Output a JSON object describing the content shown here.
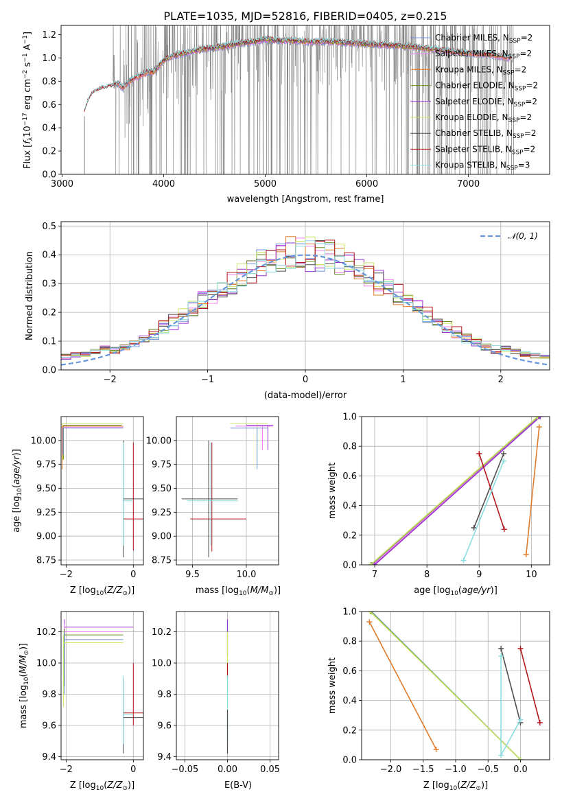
{
  "title": "PLATE=1035, MJD=52816, FIBERID=0405, z=0.215",
  "colors": {
    "chabrier_miles": "#6f8fdc",
    "salpeter_miles": "#ee82ee",
    "kroupa_miles": "#e07b2a",
    "chabrier_elodie": "#6b8e23",
    "salpeter_elodie": "#9a32cd",
    "kroupa_elodie": "#c9e66a",
    "chabrier_stelib": "#4d4d4d",
    "salpeter_stelib": "#b3161b",
    "kroupa_stelib": "#89dde0",
    "data": "#808080",
    "normal": "#6495dc",
    "grid": "#b0b0b0"
  },
  "chart_data": [
    {
      "id": "spectrum",
      "type": "line",
      "xlabel": "wavelength [Angstrom, rest frame]",
      "ylabel": "Flux [f",
      "ylabel_parts": [
        "Flux [",
        "f",
        "λ",
        "10",
        "−17",
        " erg cm",
        "−2",
        " s",
        "−1",
        " A",
        "−1",
        "]"
      ],
      "xlim": [
        2990,
        7800
      ],
      "ylim": [
        0,
        1.28
      ],
      "xticks": [
        3000,
        4000,
        5000,
        6000,
        7000
      ],
      "yticks": [
        0.0,
        0.2,
        0.4,
        0.6,
        0.8,
        1.0,
        1.2
      ],
      "grid": false,
      "legend_position": "top-right",
      "legend": [
        {
          "key": "chabrier_miles",
          "label": "Chabrier MILES, N",
          "sub": "SSP",
          "tail": "=2"
        },
        {
          "key": "salpeter_miles",
          "label": "Salpeter MILES, N",
          "sub": "SSP",
          "tail": "=2"
        },
        {
          "key": "kroupa_miles",
          "label": "Kroupa MILES, N",
          "sub": "SSP",
          "tail": "=2"
        },
        {
          "key": "chabrier_elodie",
          "label": "Chabrier ELODIE, N",
          "sub": "SSP",
          "tail": "=2"
        },
        {
          "key": "salpeter_elodie",
          "label": "Salpeter ELODIE, N",
          "sub": "SSP",
          "tail": "=2"
        },
        {
          "key": "kroupa_elodie",
          "label": "Kroupa ELODIE, N",
          "sub": "SSP",
          "tail": "=2"
        },
        {
          "key": "chabrier_stelib",
          "label": "Chabrier STELIB, N",
          "sub": "SSP",
          "tail": "=2"
        },
        {
          "key": "salpeter_stelib",
          "label": "Salpeter STELIB, N",
          "sub": "SSP",
          "tail": "=2"
        },
        {
          "key": "kroupa_stelib",
          "label": "Kroupa STELIB, N",
          "sub": "SSP",
          "tail": "=3"
        }
      ],
      "continuum": {
        "x": [
          3210,
          3250,
          3300,
          3350,
          3400,
          3450,
          3500,
          3550,
          3600,
          3650,
          3700,
          3750,
          3800,
          3850,
          3900,
          4000,
          4100,
          4200,
          4300,
          4400,
          4500,
          4600,
          4700,
          4800,
          4900,
          5000,
          5100,
          5200,
          5400,
          5600,
          5800,
          6000,
          6200,
          6400,
          6600,
          6800,
          7000,
          7200,
          7400
        ],
        "y": [
          0.5,
          0.62,
          0.7,
          0.72,
          0.74,
          0.75,
          0.76,
          0.78,
          0.74,
          0.79,
          0.82,
          0.84,
          0.86,
          0.88,
          0.88,
          0.98,
          1.02,
          1.04,
          1.06,
          1.08,
          1.09,
          1.1,
          1.12,
          1.13,
          1.14,
          1.16,
          1.15,
          1.15,
          1.14,
          1.14,
          1.13,
          1.12,
          1.11,
          1.1,
          1.08,
          1.06,
          1.04,
          1.03,
          1.0
        ]
      },
      "data_range": [
        3500,
        7450
      ]
    },
    {
      "id": "residuals",
      "type": "histogram",
      "xlabel": "(data-model)/error",
      "ylabel": "Normed distribution",
      "xlim": [
        -2.5,
        2.5
      ],
      "ylim": [
        0,
        0.515
      ],
      "xticks": [
        -2,
        -1,
        0,
        1,
        2
      ],
      "yticks": [
        0.0,
        0.1,
        0.2,
        0.3,
        0.4,
        0.5
      ],
      "grid": true,
      "legend_position": "top-right",
      "normal_label": "N(0,1)",
      "bin_width": 0.1
    },
    {
      "id": "age_vs_Z",
      "type": "errorbar",
      "xlabel": "Z [log10(Z/Z⊙)]",
      "ylabel": "age  [log10(age/yr)]",
      "xlim": [
        -2.15,
        0.3
      ],
      "ylim": [
        8.7,
        10.25
      ],
      "xticks": [
        -2,
        0
      ],
      "yticks": [
        8.75,
        9.0,
        9.25,
        9.5,
        9.75,
        10.0
      ],
      "grid": true
    },
    {
      "id": "age_vs_mass",
      "type": "errorbar",
      "xlabel": "mass [log10(M/M⊙)]",
      "ylabel": "",
      "xlim": [
        9.35,
        10.3
      ],
      "ylim": [
        8.7,
        10.25
      ],
      "xticks": [
        9.5,
        10.0
      ],
      "yticks": [
        8.75,
        9.0,
        9.25,
        9.5,
        9.75,
        10.0
      ],
      "grid": true
    },
    {
      "id": "weight_vs_age",
      "type": "line",
      "xlabel": "age  [log10(age/yr)]",
      "ylabel": "mass weight",
      "xlim": [
        6.75,
        10.35
      ],
      "ylim": [
        0,
        1
      ],
      "xticks": [
        7,
        8,
        9,
        10
      ],
      "yticks": [
        0.0,
        0.2,
        0.4,
        0.6,
        0.8,
        1.0
      ],
      "grid": true,
      "series": [
        {
          "key": "chabrier_miles",
          "x": [
            6.95,
            10.15
          ],
          "y": [
            0.0,
            1.0
          ]
        },
        {
          "key": "salpeter_miles",
          "x": [
            6.97,
            10.14
          ],
          "y": [
            0.0,
            1.0
          ]
        },
        {
          "key": "kroupa_miles",
          "x": [
            9.9,
            10.15
          ],
          "y": [
            0.07,
            0.93
          ]
        },
        {
          "key": "chabrier_elodie",
          "x": [
            6.93,
            10.13
          ],
          "y": [
            0.0,
            1.0
          ]
        },
        {
          "key": "salpeter_elodie",
          "x": [
            7.0,
            10.17
          ],
          "y": [
            0.0,
            1.0
          ]
        },
        {
          "key": "kroupa_elodie",
          "x": [
            6.92,
            10.12
          ],
          "y": [
            0.0,
            1.0
          ]
        },
        {
          "key": "chabrier_stelib",
          "x": [
            8.9,
            9.47
          ],
          "y": [
            0.25,
            0.75
          ]
        },
        {
          "key": "salpeter_stelib",
          "x": [
            9.0,
            9.48
          ],
          "y": [
            0.75,
            0.24
          ]
        },
        {
          "key": "kroupa_stelib",
          "x": [
            8.7,
            9.47
          ],
          "y": [
            0.03,
            0.7
          ]
        }
      ]
    },
    {
      "id": "mass_vs_Z",
      "type": "errorbar",
      "xlabel": "Z [log10(Z/Z⊙)]",
      "ylabel": "mass [log10(M/M⊙)]",
      "xlim": [
        -2.15,
        0.3
      ],
      "ylim": [
        9.38,
        10.33
      ],
      "xticks": [
        -2,
        0
      ],
      "yticks": [
        9.4,
        9.6,
        9.8,
        10.0,
        10.2
      ],
      "grid": true
    },
    {
      "id": "mass_vs_ebv",
      "type": "errorbar",
      "xlabel": "E(B-V)",
      "ylabel": "",
      "xlim": [
        -0.06,
        0.06
      ],
      "ylim": [
        9.38,
        10.33
      ],
      "xticks": [
        -0.05,
        0.0,
        0.05
      ],
      "yticks": [
        9.4,
        9.6,
        9.8,
        10.0,
        10.2
      ],
      "grid": true
    },
    {
      "id": "weight_vs_Z",
      "type": "line",
      "xlabel": "Z [log10(Z/Z⊙)]",
      "ylabel": "mass weight",
      "xlim": [
        -2.45,
        0.45
      ],
      "ylim": [
        0,
        1
      ],
      "xticks": [
        -2.0,
        -1.5,
        -1.0,
        -0.5,
        0.0
      ],
      "yticks": [
        0.0,
        0.2,
        0.4,
        0.6,
        0.8,
        1.0
      ],
      "grid": true,
      "series": [
        {
          "key": "chabrier_miles",
          "x": [
            -2.3,
            0.0
          ],
          "y": [
            1.0,
            0.0
          ]
        },
        {
          "key": "kroupa_miles",
          "x": [
            -2.33,
            -1.3
          ],
          "y": [
            0.93,
            0.07
          ]
        },
        {
          "key": "chabrier_elodie",
          "x": [
            -2.31,
            0.0
          ],
          "y": [
            1.0,
            0.0
          ]
        },
        {
          "key": "kroupa_elodie",
          "x": [
            -2.32,
            0.0
          ],
          "y": [
            1.0,
            0.0
          ]
        },
        {
          "key": "chabrier_stelib",
          "x": [
            -0.3,
            0.0
          ],
          "y": [
            0.75,
            0.25
          ]
        },
        {
          "key": "salpeter_stelib",
          "x": [
            0.0,
            0.3
          ],
          "y": [
            0.75,
            0.25
          ]
        },
        {
          "key": "kroupa_stelib",
          "x": [
            -0.3,
            -0.3,
            0.0
          ],
          "y": [
            0.7,
            0.03,
            0.27
          ]
        }
      ]
    }
  ]
}
